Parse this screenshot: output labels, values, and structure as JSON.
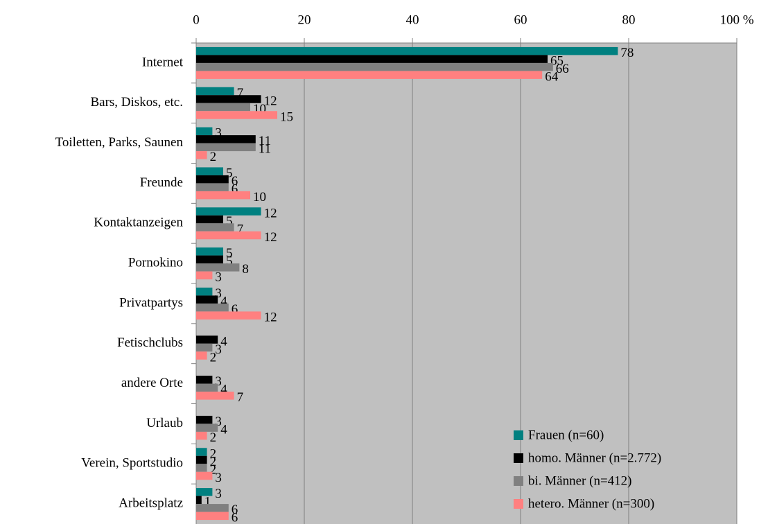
{
  "chart_data": {
    "type": "bar",
    "orientation": "horizontal",
    "categories": [
      "Internet",
      "Bars, Diskos, etc.",
      "Toiletten, Parks, Saunen",
      "Freunde",
      "Kontaktanzeigen",
      "Pornokino",
      "Privatpartys",
      "Fetischclubs",
      "andere Orte",
      "Urlaub",
      "Verein, Sportstudio",
      "Arbeitsplatz"
    ],
    "series": [
      {
        "name": "Frauen (n=60)",
        "color": "#008080",
        "values": [
          78,
          7,
          3,
          5,
          12,
          5,
          3,
          null,
          null,
          null,
          2,
          3
        ]
      },
      {
        "name": "homo. Männer (n=2.772)",
        "color": "#000000",
        "values": [
          65,
          12,
          11,
          6,
          5,
          5,
          4,
          4,
          3,
          3,
          2,
          1
        ]
      },
      {
        "name": "bi. Männer (n=412)",
        "color": "#808080",
        "values": [
          66,
          10,
          11,
          6,
          7,
          8,
          6,
          3,
          4,
          4,
          2,
          6
        ]
      },
      {
        "name": "hetero. Männer (n=300)",
        "color": "#ff8080",
        "values": [
          64,
          15,
          2,
          10,
          12,
          3,
          12,
          2,
          7,
          2,
          3,
          6
        ]
      }
    ],
    "xlim": [
      0,
      100
    ],
    "xticks": [
      0,
      20,
      40,
      60,
      80,
      {
        "value": 100,
        "label": "100 %"
      }
    ],
    "grid": true,
    "legend": "lower right"
  }
}
